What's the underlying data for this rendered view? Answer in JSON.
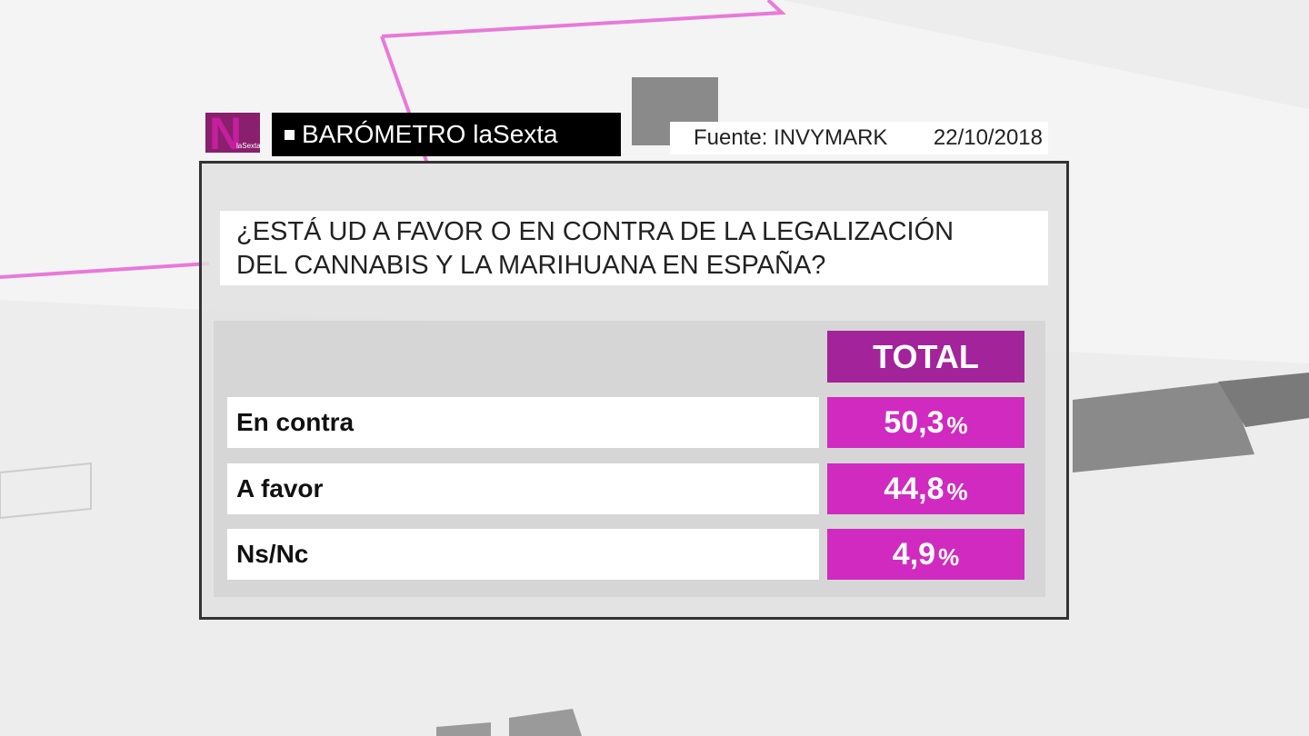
{
  "header": {
    "logo_letter": "N",
    "logo_brand": "laSexta",
    "title": "BARÓMETRO laSexta",
    "source": "Fuente: INVYMARK",
    "date": "22/10/2018"
  },
  "question": {
    "line1": "¿ESTÁ UD A FAVOR O EN CONTRA DE LA LEGALIZACIÓN",
    "line2": "DEL CANNABIS Y LA MARIHUANA EN ESPAÑA?"
  },
  "table": {
    "column_header": "TOTAL",
    "rows": [
      {
        "label": "En contra",
        "value": "50,3",
        "unit": "%"
      },
      {
        "label": "A favor",
        "value": "44,8",
        "unit": "%"
      },
      {
        "label": "Ns/Nc",
        "value": "4,9",
        "unit": "%"
      }
    ]
  }
}
